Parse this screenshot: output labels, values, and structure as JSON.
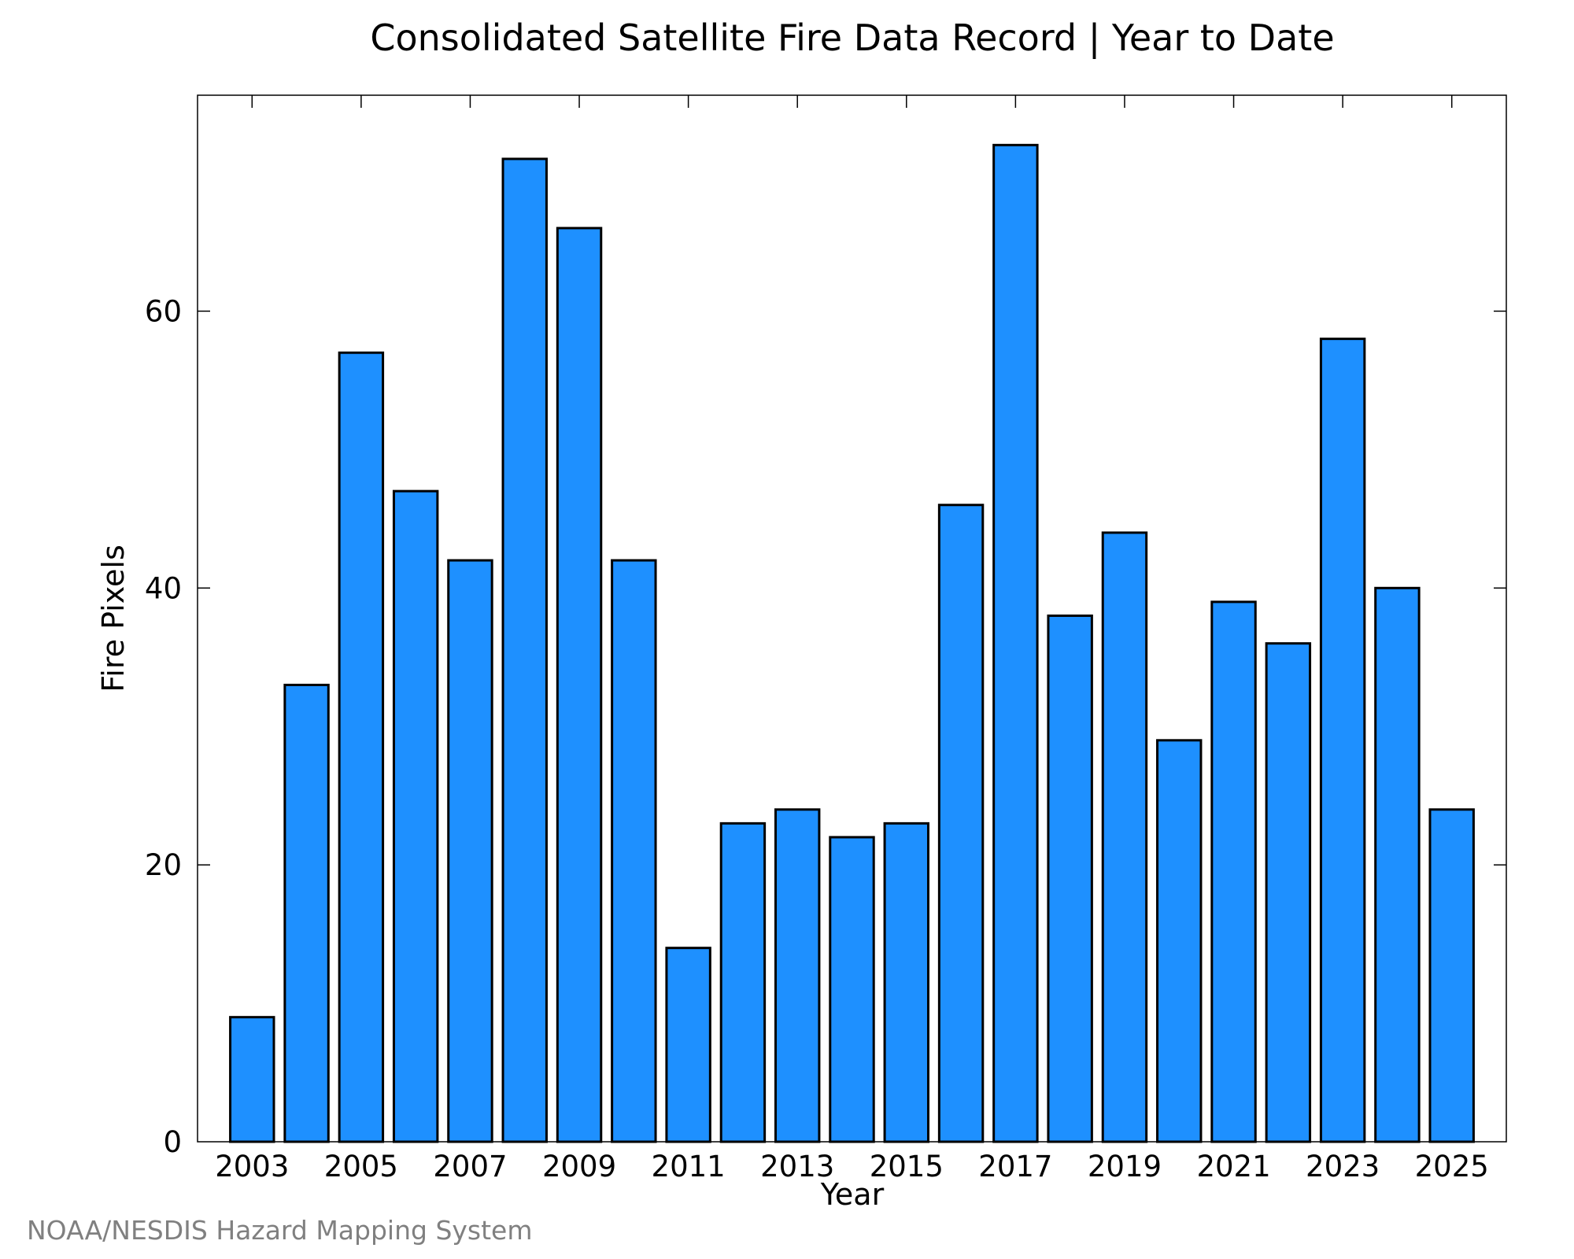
{
  "chart_data": {
    "type": "bar",
    "title": "Consolidated Satellite Fire Data Record | Year to Date",
    "xlabel": "Year",
    "ylabel": "Fire Pixels",
    "credit": "NOAA/NESDIS Hazard Mapping System",
    "categories": [
      2003,
      2004,
      2005,
      2006,
      2007,
      2008,
      2009,
      2010,
      2011,
      2012,
      2013,
      2014,
      2015,
      2016,
      2017,
      2018,
      2019,
      2020,
      2021,
      2022,
      2023,
      2024,
      2025
    ],
    "values": [
      9,
      33,
      57,
      47,
      42,
      71,
      66,
      42,
      14,
      23,
      24,
      22,
      23,
      46,
      72,
      38,
      44,
      29,
      39,
      36,
      58,
      40,
      24
    ],
    "xlim": [
      2002,
      2026
    ],
    "ylim": [
      0,
      75.6
    ],
    "xticks": [
      2003,
      2005,
      2007,
      2009,
      2011,
      2013,
      2015,
      2017,
      2019,
      2021,
      2023,
      2025
    ],
    "xtick_labels": [
      "2003",
      "2005",
      "2007",
      "2009",
      "2011",
      "2013",
      "2015",
      "2017",
      "2019",
      "2021",
      "2023",
      "2025"
    ],
    "yticks": [
      0,
      20,
      40,
      60
    ],
    "ytick_labels": [
      "0",
      "20",
      "40",
      "60"
    ],
    "bar_color": "#1e90ff",
    "bar_edge_color": "#000000",
    "grid": false,
    "legend": "none"
  }
}
